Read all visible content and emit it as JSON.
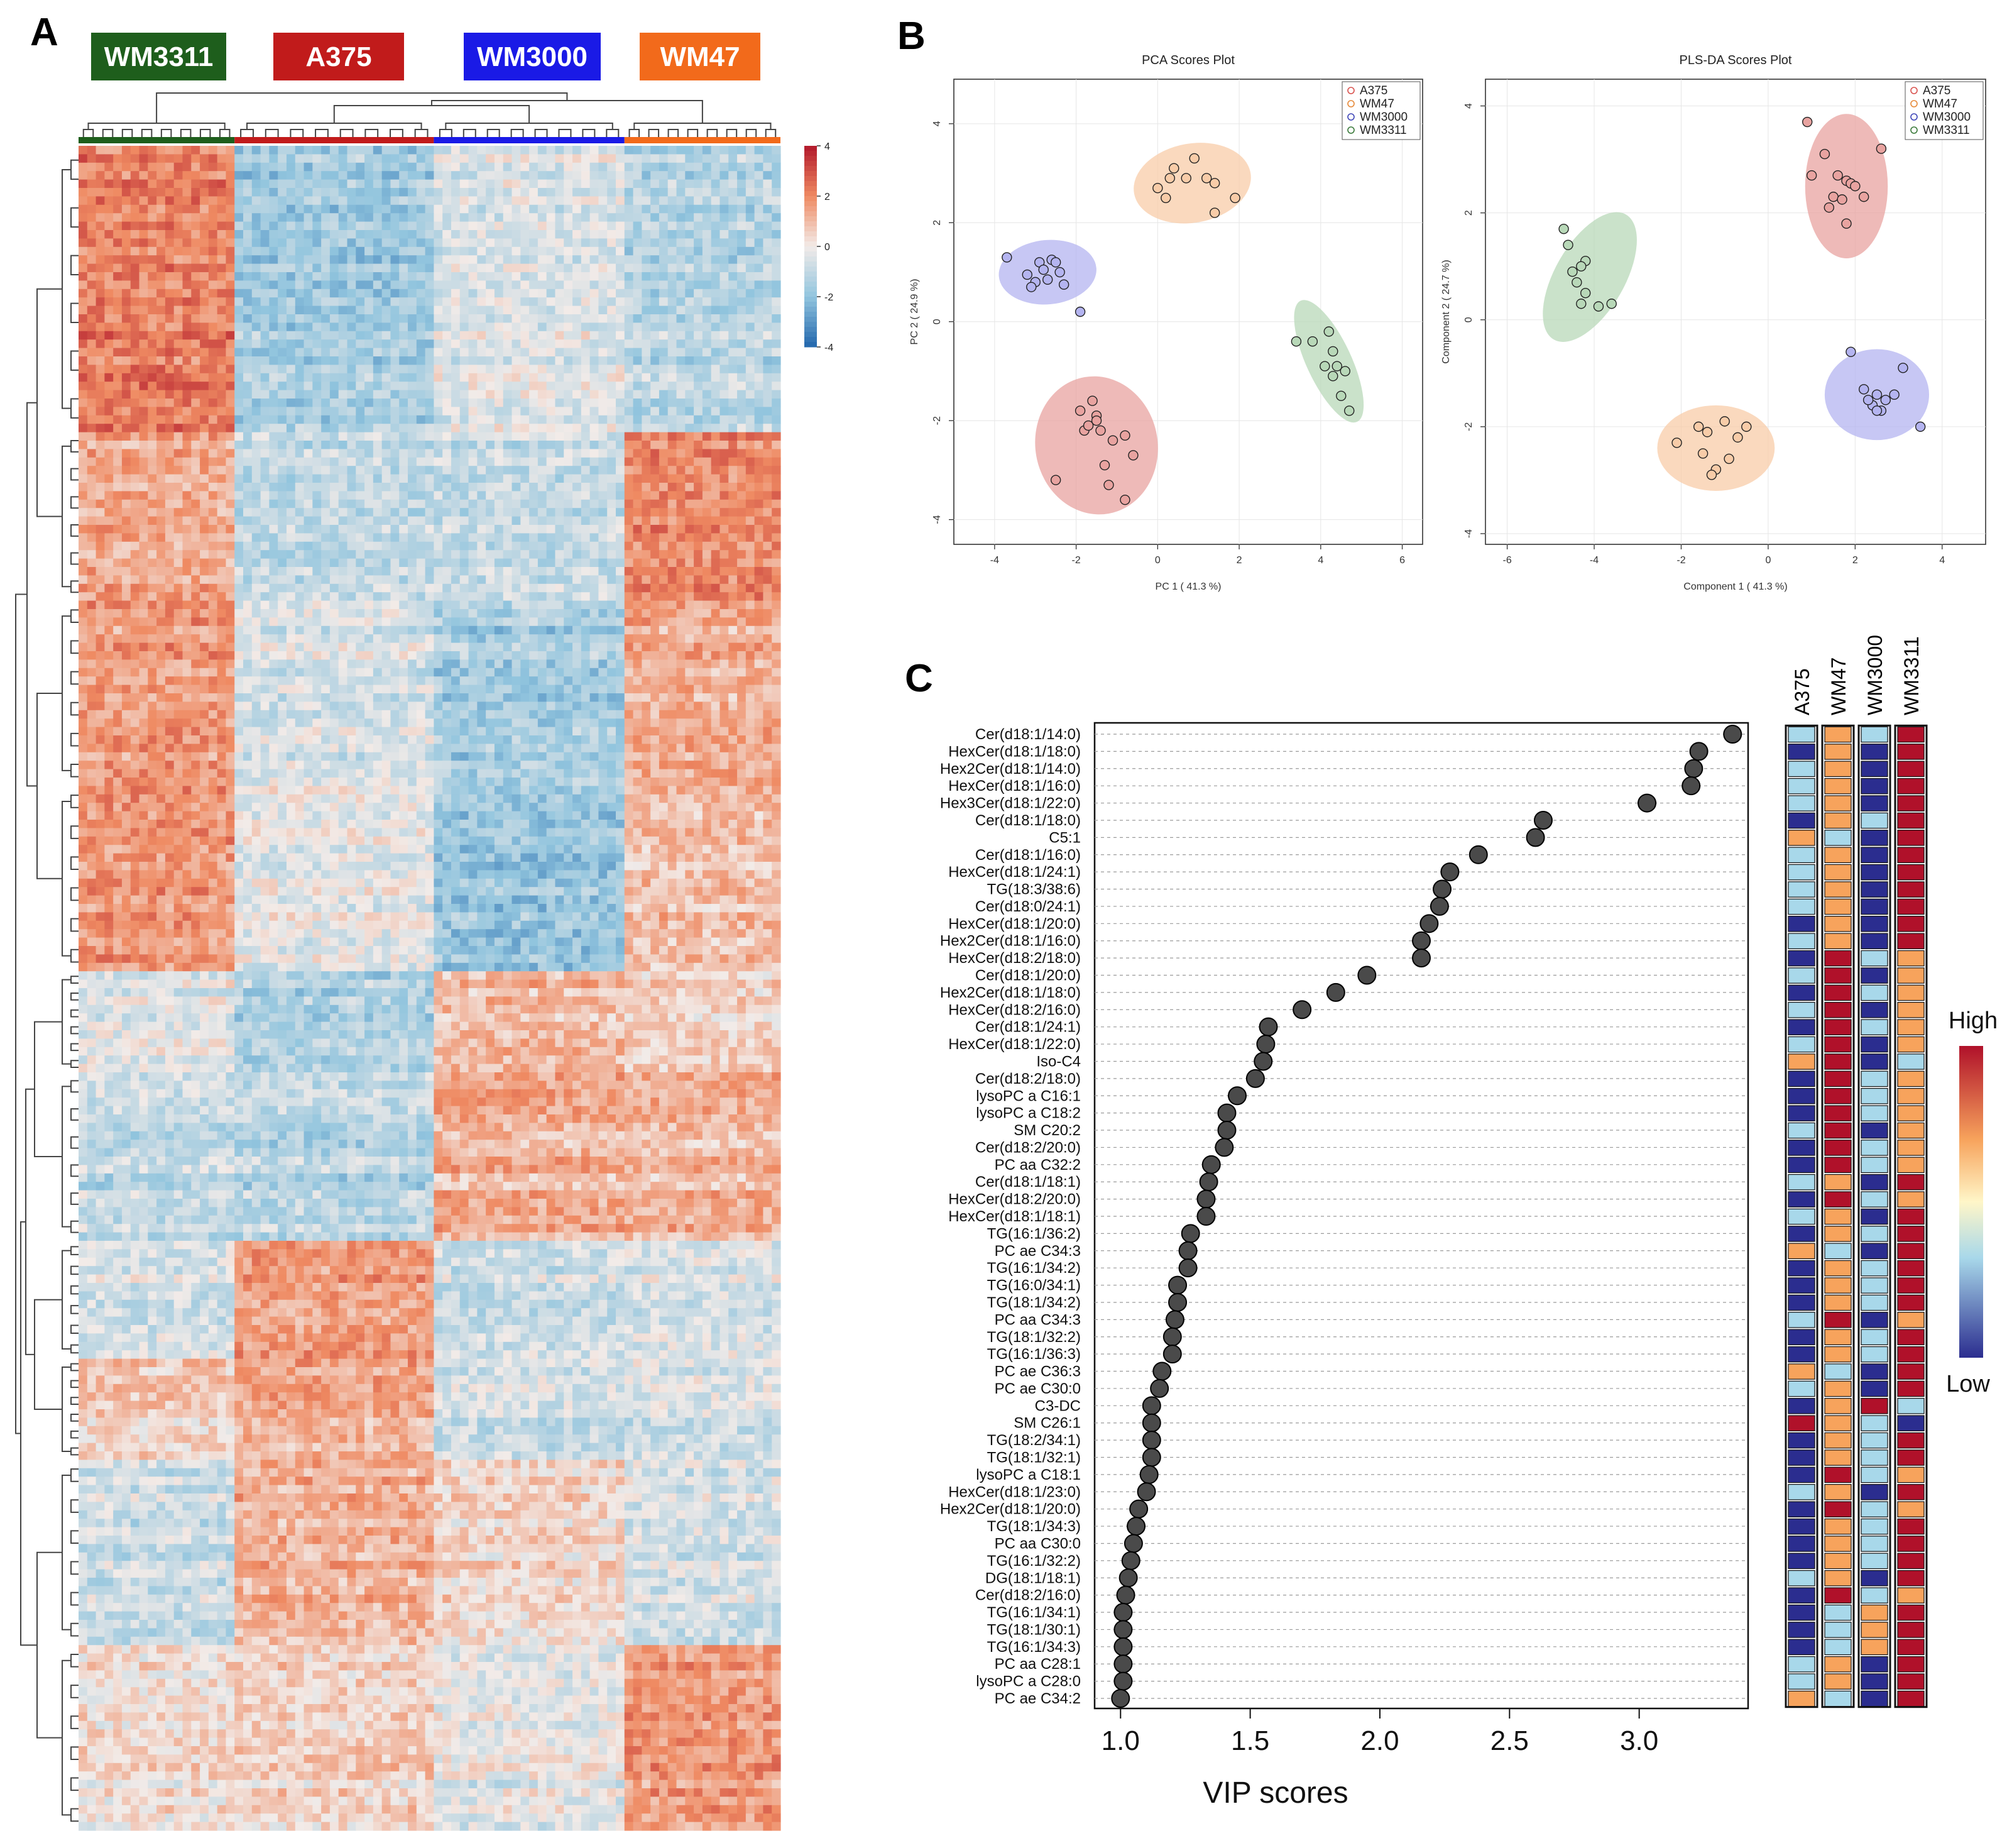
{
  "colors": {
    "WM3311": "#1e5e1c",
    "A375": "#c11b1b",
    "WM3000": "#1a1ae6",
    "WM47": "#f26a1b",
    "high": "#b2182b",
    "low": "#2166ac",
    "vip_low": "#2b2d8f",
    "vip_lowmid": "#a8d8ea",
    "vip_mid": "#f7a35c",
    "vip_high": "#b0112a"
  },
  "panels": {
    "A": "A",
    "B": "B",
    "C": "C"
  },
  "chart_data": [
    {
      "id": "A",
      "type": "heatmap",
      "title": "",
      "group_labels": [
        "WM3311",
        "A375",
        "WM3000",
        "WM47"
      ],
      "group_colors": [
        "#1e5e1c",
        "#c11b1b",
        "#1a1ae6",
        "#f26a1b"
      ],
      "scale_range": [
        -4,
        4
      ],
      "scale_ticks": [
        "4",
        "2",
        "0",
        "-2",
        "-4"
      ],
      "block_rows": [
        {
          "rows": 34,
          "pattern": [
            2.2,
            -1.6,
            -0.4,
            -1.2
          ]
        },
        {
          "rows": 20,
          "pattern": [
            1.4,
            -1.0,
            -0.9,
            2.0
          ]
        },
        {
          "rows": 22,
          "pattern": [
            1.6,
            -0.6,
            -1.6,
            1.2
          ]
        },
        {
          "rows": 22,
          "pattern": [
            1.8,
            -0.2,
            -1.8,
            1.0
          ]
        },
        {
          "rows": 12,
          "pattern": [
            -0.3,
            -1.4,
            1.0,
            0.6
          ]
        },
        {
          "rows": 20,
          "pattern": [
            -1.0,
            -1.2,
            1.2,
            1.1
          ]
        },
        {
          "rows": 14,
          "pattern": [
            -0.6,
            1.6,
            -0.8,
            -0.5
          ]
        },
        {
          "rows": 12,
          "pattern": [
            0.6,
            1.3,
            -0.7,
            -0.6
          ]
        },
        {
          "rows": 22,
          "pattern": [
            -0.8,
            1.2,
            0.4,
            -0.6
          ]
        },
        {
          "rows": 22,
          "pattern": [
            0.2,
            0.5,
            -0.3,
            1.6
          ]
        }
      ]
    },
    {
      "id": "B-PCA",
      "type": "scatter",
      "title": "PCA Scores Plot",
      "xlabel": "PC 1 ( 41.3 %)",
      "ylabel": "PC 2 ( 24.9 %)",
      "xlim": [
        -5,
        6.5
      ],
      "ylim": [
        -4.5,
        4.9
      ],
      "xticks": [
        -4,
        -2,
        0,
        2,
        4,
        6
      ],
      "yticks": [
        -4,
        -2,
        0,
        2,
        4
      ],
      "legend": [
        "A375",
        "WM47",
        "WM3000",
        "WM3311"
      ],
      "legend_position": "top-right",
      "series": [
        {
          "name": "A375",
          "color": "#d9534f",
          "fill": "#e8a3a0",
          "ellipse": {
            "cx": -1.5,
            "cy": -2.5,
            "rx": 1.5,
            "ry": 1.4,
            "angle": -10
          },
          "x": [
            -1.6,
            -1.5,
            -1.9,
            -1.5,
            -1.8,
            -1.7,
            -1.4,
            -1.1,
            -0.8,
            -0.6,
            -1.3,
            -1.2,
            -2.5,
            -0.8
          ],
          "y": [
            -1.6,
            -1.9,
            -1.8,
            -2.0,
            -2.2,
            -2.1,
            -2.2,
            -2.4,
            -2.3,
            -2.7,
            -2.9,
            -3.3,
            -3.2,
            -3.6
          ]
        },
        {
          "name": "WM47",
          "color": "#e68a3a",
          "fill": "#f8cca8",
          "ellipse": {
            "cx": 0.85,
            "cy": 2.8,
            "rx": 1.45,
            "ry": 0.8,
            "angle": -10
          },
          "x": [
            0.4,
            0.9,
            0.7,
            0.3,
            1.2,
            1.4,
            0.0,
            0.2,
            1.9,
            1.4
          ],
          "y": [
            3.1,
            3.3,
            2.9,
            2.9,
            2.9,
            2.8,
            2.7,
            2.5,
            2.5,
            2.2
          ]
        },
        {
          "name": "WM3000",
          "color": "#3f46b8",
          "fill": "#b4b4f0",
          "ellipse": {
            "cx": -2.7,
            "cy": 1.0,
            "rx": 1.2,
            "ry": 0.65,
            "angle": -5
          },
          "x": [
            -3.7,
            -2.9,
            -2.6,
            -2.5,
            -2.8,
            -2.4,
            -3.2,
            -3.0,
            -2.7,
            -3.1,
            -2.3,
            -1.9
          ],
          "y": [
            1.3,
            1.2,
            1.25,
            1.2,
            1.05,
            1.0,
            0.95,
            0.8,
            0.85,
            0.7,
            0.75,
            0.2
          ]
        },
        {
          "name": "WM3311",
          "color": "#3a7a3a",
          "fill": "#b8d8b8",
          "ellipse": {
            "cx": 4.2,
            "cy": -0.8,
            "rx": 0.55,
            "ry": 1.35,
            "angle": -25
          },
          "x": [
            3.4,
            3.8,
            4.2,
            4.3,
            4.4,
            4.1,
            4.3,
            4.6,
            4.5,
            4.7
          ],
          "y": [
            -0.4,
            -0.4,
            -0.2,
            -0.6,
            -0.9,
            -0.9,
            -1.1,
            -1.0,
            -1.5,
            -1.8
          ]
        }
      ]
    },
    {
      "id": "B-PLSDA",
      "type": "scatter",
      "title": "PLS-DA Scores Plot",
      "xlabel": "Component 1 ( 41.3 %)",
      "ylabel": "Component 2 ( 24.7 %)",
      "xlim": [
        -6.5,
        5
      ],
      "ylim": [
        -4.2,
        4.5
      ],
      "xticks": [
        -6,
        -4,
        -2,
        0,
        2,
        4
      ],
      "yticks": [
        -4,
        -2,
        0,
        2,
        4
      ],
      "legend": [
        "A375",
        "WM47",
        "WM3000",
        "WM3311"
      ],
      "legend_position": "top-right",
      "series": [
        {
          "name": "A375",
          "color": "#d9534f",
          "fill": "#e8a3a0",
          "ellipse": {
            "cx": 1.8,
            "cy": 2.5,
            "rx": 0.95,
            "ry": 1.35,
            "angle": 0
          },
          "x": [
            0.9,
            1.3,
            1.0,
            1.6,
            1.8,
            1.9,
            2.0,
            1.5,
            2.2,
            1.7,
            1.4,
            2.6,
            1.8
          ],
          "y": [
            3.7,
            3.1,
            2.7,
            2.7,
            2.6,
            2.55,
            2.5,
            2.3,
            2.3,
            2.25,
            2.1,
            3.2,
            1.8
          ]
        },
        {
          "name": "WM47",
          "color": "#e68a3a",
          "fill": "#f8cca8",
          "ellipse": {
            "cx": -1.2,
            "cy": -2.4,
            "rx": 1.35,
            "ry": 0.8,
            "angle": 0
          },
          "x": [
            -1.0,
            -1.6,
            -0.5,
            -1.4,
            -0.7,
            -2.1,
            -1.5,
            -0.9,
            -1.2,
            -1.3
          ],
          "y": [
            -1.9,
            -2.0,
            -2.0,
            -2.1,
            -2.2,
            -2.3,
            -2.5,
            -2.6,
            -2.8,
            -2.9
          ]
        },
        {
          "name": "WM3000",
          "color": "#3f46b8",
          "fill": "#b4b4f0",
          "ellipse": {
            "cx": 2.5,
            "cy": -1.4,
            "rx": 1.2,
            "ry": 0.85,
            "angle": 0
          },
          "x": [
            1.9,
            2.2,
            3.1,
            2.5,
            2.7,
            2.9,
            2.4,
            2.6,
            2.3,
            2.5,
            3.5
          ],
          "y": [
            -0.6,
            -1.3,
            -0.9,
            -1.4,
            -1.5,
            -1.4,
            -1.6,
            -1.7,
            -1.5,
            -1.7,
            -2.0
          ]
        },
        {
          "name": "WM3311",
          "color": "#3a7a3a",
          "fill": "#b8d8b8",
          "ellipse": {
            "cx": -4.1,
            "cy": 0.8,
            "rx": 0.8,
            "ry": 1.35,
            "angle": 30
          },
          "x": [
            -4.7,
            -4.6,
            -4.2,
            -4.3,
            -4.5,
            -4.4,
            -4.2,
            -4.3,
            -3.9,
            -3.6
          ],
          "y": [
            1.7,
            1.4,
            1.1,
            1.0,
            0.9,
            0.7,
            0.5,
            0.3,
            0.25,
            0.3
          ]
        }
      ]
    },
    {
      "id": "C",
      "type": "scatter",
      "title": "",
      "xlabel": "VIP scores",
      "xlim": [
        0.9,
        3.42
      ],
      "xticks": [
        "1.0",
        "1.5",
        "2.0",
        "2.5",
        "3.0"
      ],
      "columns": [
        "A375",
        "WM47",
        "WM3000",
        "WM3311"
      ],
      "legend_high": "High",
      "legend_low": "Low",
      "features": [
        {
          "label": "Cer(d18:1/14:0)",
          "vip": 3.36,
          "levels": [
            2,
            3,
            2,
            4
          ]
        },
        {
          "label": "HexCer(d18:1/18:0)",
          "vip": 3.23,
          "levels": [
            1,
            3,
            1,
            4
          ]
        },
        {
          "label": "Hex2Cer(d18:1/14:0)",
          "vip": 3.21,
          "levels": [
            2,
            3,
            1,
            4
          ]
        },
        {
          "label": "HexCer(d18:1/16:0)",
          "vip": 3.2,
          "levels": [
            2,
            3,
            1,
            4
          ]
        },
        {
          "label": "Hex3Cer(d18:1/22:0)",
          "vip": 3.03,
          "levels": [
            2,
            3,
            1,
            4
          ]
        },
        {
          "label": "Cer(d18:1/18:0)",
          "vip": 2.63,
          "levels": [
            1,
            3,
            2,
            4
          ]
        },
        {
          "label": "C5:1",
          "vip": 2.6,
          "levels": [
            3,
            2,
            1,
            4
          ]
        },
        {
          "label": "Cer(d18:1/16:0)",
          "vip": 2.38,
          "levels": [
            2,
            3,
            1,
            4
          ]
        },
        {
          "label": "HexCer(d18:1/24:1)",
          "vip": 2.27,
          "levels": [
            2,
            3,
            1,
            4
          ]
        },
        {
          "label": "TG(18:3/38:6)",
          "vip": 2.24,
          "levels": [
            2,
            3,
            1,
            4
          ]
        },
        {
          "label": "Cer(d18:0/24:1)",
          "vip": 2.23,
          "levels": [
            2,
            3,
            1,
            4
          ]
        },
        {
          "label": "HexCer(d18:1/20:0)",
          "vip": 2.19,
          "levels": [
            1,
            3,
            1,
            4
          ]
        },
        {
          "label": "Hex2Cer(d18:1/16:0)",
          "vip": 2.16,
          "levels": [
            2,
            3,
            1,
            4
          ]
        },
        {
          "label": "HexCer(d18:2/18:0)",
          "vip": 2.16,
          "levels": [
            1,
            4,
            2,
            3
          ]
        },
        {
          "label": "Cer(d18:1/20:0)",
          "vip": 1.95,
          "levels": [
            2,
            4,
            1,
            3
          ]
        },
        {
          "label": "Hex2Cer(d18:1/18:0)",
          "vip": 1.83,
          "levels": [
            1,
            4,
            2,
            3
          ]
        },
        {
          "label": "HexCer(d18:2/16:0)",
          "vip": 1.7,
          "levels": [
            2,
            4,
            1,
            3
          ]
        },
        {
          "label": "Cer(d18:1/24:1)",
          "vip": 1.57,
          "levels": [
            1,
            4,
            2,
            3
          ]
        },
        {
          "label": "HexCer(d18:1/22:0)",
          "vip": 1.56,
          "levels": [
            2,
            4,
            1,
            3
          ]
        },
        {
          "label": "Iso-C4",
          "vip": 1.55,
          "levels": [
            3,
            4,
            1,
            2
          ]
        },
        {
          "label": "Cer(d18:2/18:0)",
          "vip": 1.52,
          "levels": [
            1,
            4,
            2,
            3
          ]
        },
        {
          "label": "lysoPC a C16:1",
          "vip": 1.45,
          "levels": [
            1,
            4,
            2,
            3
          ]
        },
        {
          "label": "lysoPC a C18:2",
          "vip": 1.41,
          "levels": [
            1,
            4,
            2,
            3
          ]
        },
        {
          "label": "SM C20:2",
          "vip": 1.41,
          "levels": [
            2,
            4,
            1,
            3
          ]
        },
        {
          "label": "Cer(d18:2/20:0)",
          "vip": 1.4,
          "levels": [
            1,
            4,
            2,
            3
          ]
        },
        {
          "label": "PC aa C32:2",
          "vip": 1.35,
          "levels": [
            1,
            4,
            2,
            3
          ]
        },
        {
          "label": "Cer(d18:1/18:1)",
          "vip": 1.34,
          "levels": [
            2,
            3,
            1,
            4
          ]
        },
        {
          "label": "HexCer(d18:2/20:0)",
          "vip": 1.33,
          "levels": [
            1,
            4,
            2,
            3
          ]
        },
        {
          "label": "HexCer(d18:1/18:1)",
          "vip": 1.33,
          "levels": [
            2,
            3,
            1,
            4
          ]
        },
        {
          "label": "TG(16:1/36:2)",
          "vip": 1.27,
          "levels": [
            1,
            3,
            2,
            4
          ]
        },
        {
          "label": "PC ae C34:3",
          "vip": 1.26,
          "levels": [
            3,
            2,
            1,
            4
          ]
        },
        {
          "label": "TG(16:1/34:2)",
          "vip": 1.26,
          "levels": [
            1,
            3,
            2,
            4
          ]
        },
        {
          "label": "TG(16:0/34:1)",
          "vip": 1.22,
          "levels": [
            1,
            3,
            2,
            4
          ]
        },
        {
          "label": "TG(18:1/34:2)",
          "vip": 1.22,
          "levels": [
            1,
            3,
            2,
            4
          ]
        },
        {
          "label": "PC aa C34:3",
          "vip": 1.21,
          "levels": [
            2,
            4,
            1,
            3
          ]
        },
        {
          "label": "TG(18:1/32:2)",
          "vip": 1.2,
          "levels": [
            1,
            3,
            2,
            4
          ]
        },
        {
          "label": "TG(16:1/36:3)",
          "vip": 1.2,
          "levels": [
            1,
            3,
            2,
            4
          ]
        },
        {
          "label": "PC ae C36:3",
          "vip": 1.16,
          "levels": [
            3,
            2,
            1,
            4
          ]
        },
        {
          "label": "PC ae C30:0",
          "vip": 1.15,
          "levels": [
            2,
            3,
            1,
            4
          ]
        },
        {
          "label": "C3-DC",
          "vip": 1.12,
          "levels": [
            1,
            3,
            4,
            2
          ]
        },
        {
          "label": "SM C26:1",
          "vip": 1.12,
          "levels": [
            4,
            3,
            2,
            1
          ]
        },
        {
          "label": "TG(18:2/34:1)",
          "vip": 1.12,
          "levels": [
            1,
            3,
            2,
            4
          ]
        },
        {
          "label": "TG(18:1/32:1)",
          "vip": 1.12,
          "levels": [
            1,
            3,
            2,
            4
          ]
        },
        {
          "label": "lysoPC a C18:1",
          "vip": 1.11,
          "levels": [
            1,
            4,
            2,
            3
          ]
        },
        {
          "label": "HexCer(d18:1/23:0)",
          "vip": 1.1,
          "levels": [
            2,
            3,
            1,
            4
          ]
        },
        {
          "label": "Hex2Cer(d18:1/20:0)",
          "vip": 1.07,
          "levels": [
            1,
            4,
            2,
            3
          ]
        },
        {
          "label": "TG(18:1/34:3)",
          "vip": 1.06,
          "levels": [
            1,
            3,
            2,
            4
          ]
        },
        {
          "label": "PC aa C30:0",
          "vip": 1.05,
          "levels": [
            1,
            3,
            2,
            4
          ]
        },
        {
          "label": "TG(16:1/32:2)",
          "vip": 1.04,
          "levels": [
            1,
            3,
            2,
            4
          ]
        },
        {
          "label": "DG(18:1/18:1)",
          "vip": 1.03,
          "levels": [
            2,
            3,
            1,
            4
          ]
        },
        {
          "label": "Cer(d18:2/16:0)",
          "vip": 1.02,
          "levels": [
            1,
            4,
            2,
            3
          ]
        },
        {
          "label": "TG(16:1/34:1)",
          "vip": 1.01,
          "levels": [
            1,
            2,
            3,
            4
          ]
        },
        {
          "label": "TG(18:1/30:1)",
          "vip": 1.01,
          "levels": [
            1,
            2,
            3,
            4
          ]
        },
        {
          "label": "TG(16:1/34:3)",
          "vip": 1.01,
          "levels": [
            1,
            2,
            3,
            4
          ]
        },
        {
          "label": "PC aa C28:1",
          "vip": 1.01,
          "levels": [
            2,
            3,
            1,
            4
          ]
        },
        {
          "label": "lysoPC a C28:0",
          "vip": 1.01,
          "levels": [
            2,
            3,
            1,
            4
          ]
        },
        {
          "label": "PC ae C34:2",
          "vip": 1.0,
          "levels": [
            3,
            2,
            1,
            4
          ]
        }
      ]
    }
  ]
}
